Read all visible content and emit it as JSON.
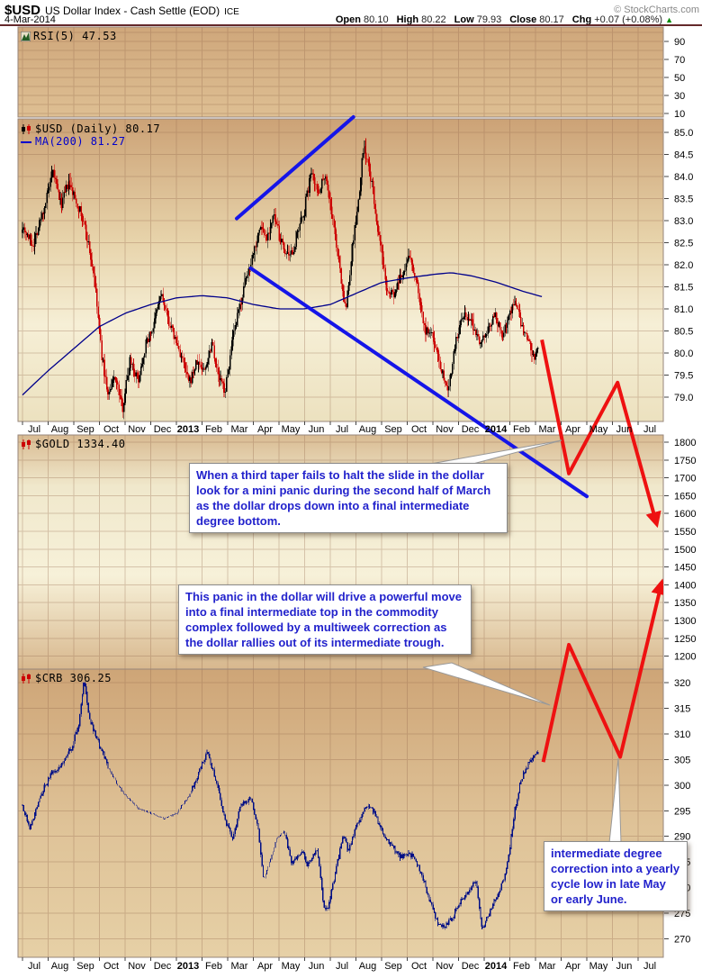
{
  "header": {
    "symbol": "$USD",
    "title": "US Dollar Index - Cash Settle (EOD)",
    "exchange": "ICE",
    "copyright": "© StockCharts.com",
    "date": "4-Mar-2014",
    "quote_parts": [
      {
        "label": "Open",
        "value": "80.10"
      },
      {
        "label": "High",
        "value": "80.22"
      },
      {
        "label": "Low",
        "value": "79.93"
      },
      {
        "label": "Close",
        "value": "80.17"
      },
      {
        "label": "Chg",
        "value": "+0.07 (+0.08%)"
      }
    ],
    "direction": "up",
    "up_triangle": "▲"
  },
  "panel_labels": {
    "rsi": "RSI(5) 47.53",
    "usd": "$USD (Daily) 80.17",
    "ma": "MA(200) 81.27",
    "gold": "$GOLD 1334.40",
    "crb": "$CRB 306.25"
  },
  "annotations": {
    "box1": "When a third taper fails to halt the slide in the dollar look for a mini panic during the second half of March as the dollar drops down into a final intermediate degree bottom.",
    "box2": "This panic in the dollar will drive a powerful move into a final intermediate top in the commodity complex followed by a multiweek correction as the dollar rallies out of its intermediate trough.",
    "box3": "intermediate degree correction into a yearly cycle low in late May or early June.",
    "tails": [
      [
        [
          473,
          516
        ],
        [
          624,
          489
        ],
        [
          503,
          521
        ]
      ],
      [
        [
          470,
          741
        ],
        [
          611,
          783
        ],
        [
          502,
          736
        ]
      ],
      [
        [
          677,
          936
        ],
        [
          687,
          842
        ],
        [
          690,
          936
        ]
      ]
    ]
  },
  "colors": {
    "candle_up": "#000000",
    "candle_down": "#cc0000",
    "crb_bars": "#000f86",
    "ma_line": "#00008b",
    "trendline_blue": "#1515e8",
    "projection_red": "#ee1111",
    "annotation_text": "#2222cc",
    "grid": "#93674c",
    "panel_border": "#97867b",
    "axis_text": "#000000"
  },
  "panel_gradients": {
    "rsi": [
      [
        0,
        "#cfa77b"
      ],
      [
        1,
        "#debf93"
      ]
    ],
    "usd": [
      [
        0,
        "#cca276"
      ],
      [
        0.4,
        "#e7d3aa"
      ],
      [
        0.68,
        "#f6efd6"
      ],
      [
        1,
        "#ece1bf"
      ]
    ],
    "gold": [
      [
        0,
        "#d9bb92"
      ],
      [
        0.22,
        "#f0e8cc"
      ],
      [
        0.6,
        "#f7f1d9"
      ],
      [
        1,
        "#d8b88e"
      ]
    ],
    "crb": [
      [
        0,
        "#cea577"
      ],
      [
        0.55,
        "#dfc398"
      ],
      [
        1,
        "#e6d0a6"
      ]
    ]
  },
  "chart_data": {
    "type": "candlestick-multi-panel",
    "x_range": [
      "Jul-2012",
      "Jul-2014"
    ],
    "data_end_month_index": 20.1,
    "month_labels": [
      "Jul",
      "Aug",
      "Sep",
      "Oct",
      "Nov",
      "Dec",
      "2013",
      "Feb",
      "Mar",
      "Apr",
      "May",
      "Jun",
      "Jul",
      "Aug",
      "Sep",
      "Oct",
      "Nov",
      "Dec",
      "2014",
      "Feb",
      "Mar",
      "Apr",
      "May",
      "Jun",
      "Jul"
    ],
    "panels": [
      {
        "id": "rsi",
        "title": "RSI(5) 47.53",
        "last_value": 47.53,
        "yticks": [
          90,
          70,
          50,
          30,
          10
        ],
        "grid_values": [
          100,
          90,
          80,
          70,
          60,
          50,
          40,
          30,
          20,
          10
        ],
        "series": []
      },
      {
        "id": "usd",
        "title": "$USD (Daily) 80.17",
        "last_value": 80.17,
        "yticks": [
          "85.0",
          "84.5",
          "84.0",
          "83.5",
          "83.0",
          "82.5",
          "82.0",
          "81.5",
          "81.0",
          "80.5",
          "80.0",
          "79.5",
          "79.0"
        ],
        "close_anchors": [
          [
            0,
            82.9
          ],
          [
            0.4,
            82.45
          ],
          [
            0.8,
            83.2
          ],
          [
            1.2,
            84.1
          ],
          [
            1.5,
            83.35
          ],
          [
            1.8,
            83.85
          ],
          [
            2.2,
            83.3
          ],
          [
            2.5,
            82.7
          ],
          [
            2.8,
            81.7
          ],
          [
            3.1,
            79.9
          ],
          [
            3.35,
            79.0
          ],
          [
            3.6,
            79.5
          ],
          [
            3.9,
            78.75
          ],
          [
            4.2,
            79.9
          ],
          [
            4.5,
            79.35
          ],
          [
            4.8,
            80.2
          ],
          [
            5.1,
            80.6
          ],
          [
            5.4,
            81.35
          ],
          [
            5.6,
            80.9
          ],
          [
            5.9,
            80.4
          ],
          [
            6.2,
            79.9
          ],
          [
            6.5,
            79.3
          ],
          [
            6.8,
            79.8
          ],
          [
            7.1,
            79.6
          ],
          [
            7.4,
            80.3
          ],
          [
            7.6,
            79.5
          ],
          [
            7.9,
            79.15
          ],
          [
            8.2,
            80.3
          ],
          [
            8.6,
            81.4
          ],
          [
            9,
            82.3
          ],
          [
            9.3,
            82.9
          ],
          [
            9.5,
            82.6
          ],
          [
            9.8,
            83.1
          ],
          [
            10.1,
            82.5
          ],
          [
            10.4,
            82.1
          ],
          [
            10.7,
            82.6
          ],
          [
            11,
            83.3
          ],
          [
            11.3,
            84.2
          ],
          [
            11.5,
            83.6
          ],
          [
            11.8,
            84.1
          ],
          [
            12.1,
            83
          ],
          [
            12.4,
            81.8
          ],
          [
            12.6,
            80.9
          ],
          [
            12.9,
            82.6
          ],
          [
            13.1,
            83.4
          ],
          [
            13.3,
            84.7
          ],
          [
            13.6,
            83.9
          ],
          [
            13.9,
            82.6
          ],
          [
            14.2,
            81.5
          ],
          [
            14.5,
            81.3
          ],
          [
            14.8,
            81.8
          ],
          [
            15.1,
            82.2
          ],
          [
            15.4,
            81.5
          ],
          [
            15.7,
            80.5
          ],
          [
            16,
            80.4
          ],
          [
            16.3,
            79.7
          ],
          [
            16.6,
            79.2
          ],
          [
            16.9,
            80.3
          ],
          [
            17.2,
            80.85
          ],
          [
            17.5,
            80.7
          ],
          [
            17.8,
            80.3
          ],
          [
            18.1,
            80.45
          ],
          [
            18.4,
            80.9
          ],
          [
            18.7,
            80.4
          ],
          [
            19,
            80.9
          ],
          [
            19.2,
            81.2
          ],
          [
            19.5,
            80.5
          ],
          [
            19.8,
            80.15
          ],
          [
            19.95,
            79.8
          ],
          [
            20.05,
            80.0
          ],
          [
            20.1,
            80.17
          ]
        ],
        "ma200_anchors": [
          [
            0,
            79.05
          ],
          [
            1,
            79.6
          ],
          [
            2,
            80.1
          ],
          [
            3,
            80.6
          ],
          [
            4,
            80.9
          ],
          [
            5,
            81.1
          ],
          [
            6,
            81.25
          ],
          [
            7,
            81.3
          ],
          [
            8,
            81.25
          ],
          [
            9,
            81.1
          ],
          [
            10,
            81
          ],
          [
            11,
            81
          ],
          [
            12,
            81.1
          ],
          [
            13,
            81.35
          ],
          [
            14,
            81.6
          ],
          [
            15,
            81.7
          ],
          [
            16,
            81.78
          ],
          [
            16.7,
            81.82
          ],
          [
            17.5,
            81.75
          ],
          [
            18.5,
            81.6
          ],
          [
            19.5,
            81.4
          ],
          [
            20.3,
            81.27
          ]
        ]
      },
      {
        "id": "gold",
        "title": "$GOLD 1334.40",
        "last_value": 1334.4,
        "yticks": [
          1800,
          1750,
          1700,
          1650,
          1600,
          1550,
          1500,
          1450,
          1400,
          1350,
          1300,
          1250,
          1200
        ],
        "series": []
      },
      {
        "id": "crb",
        "title": "$CRB 306.25",
        "last_value": 306.25,
        "yticks": [
          320,
          315,
          310,
          305,
          300,
          295,
          290,
          285,
          280,
          275,
          270
        ],
        "close_anchors": [
          [
            0,
            296
          ],
          [
            0.3,
            291.5
          ],
          [
            0.7,
            298
          ],
          [
            1.1,
            302
          ],
          [
            1.5,
            304
          ],
          [
            1.9,
            307
          ],
          [
            2.2,
            312
          ],
          [
            2.4,
            320.5
          ],
          [
            2.6,
            313
          ],
          [
            2.9,
            309
          ],
          [
            3.3,
            304
          ],
          [
            3.7,
            300
          ],
          [
            4.1,
            297.5
          ],
          [
            4.5,
            295.5
          ],
          [
            5,
            294.5
          ],
          [
            5.5,
            293.5
          ],
          [
            6,
            294.5
          ],
          [
            6.5,
            298
          ],
          [
            7,
            304
          ],
          [
            7.2,
            306.5
          ],
          [
            7.6,
            300
          ],
          [
            7.9,
            293
          ],
          [
            8.2,
            289.5
          ],
          [
            8.5,
            296
          ],
          [
            8.9,
            297.5
          ],
          [
            9.2,
            291
          ],
          [
            9.4,
            281.5
          ],
          [
            9.7,
            286
          ],
          [
            9.9,
            289.5
          ],
          [
            10.2,
            291
          ],
          [
            10.5,
            284.5
          ],
          [
            10.9,
            287
          ],
          [
            11.1,
            284.5
          ],
          [
            11.5,
            287.5
          ],
          [
            11.75,
            276
          ],
          [
            11.9,
            275.5
          ],
          [
            12.2,
            283
          ],
          [
            12.5,
            290.5
          ],
          [
            12.7,
            287
          ],
          [
            13,
            292
          ],
          [
            13.4,
            296
          ],
          [
            13.7,
            295
          ],
          [
            14.1,
            290
          ],
          [
            14.4,
            288
          ],
          [
            14.7,
            286
          ],
          [
            15,
            286.5
          ],
          [
            15.3,
            286
          ],
          [
            15.6,
            282
          ],
          [
            15.9,
            277
          ],
          [
            16.2,
            273
          ],
          [
            16.5,
            272.5
          ],
          [
            16.8,
            274.5
          ],
          [
            17.1,
            277.5
          ],
          [
            17.5,
            280
          ],
          [
            17.7,
            281.5
          ],
          [
            17.9,
            272
          ],
          [
            18.2,
            275
          ],
          [
            18.5,
            278.5
          ],
          [
            18.8,
            282
          ],
          [
            19,
            288
          ],
          [
            19.2,
            295
          ],
          [
            19.4,
            300.5
          ],
          [
            19.6,
            303
          ],
          [
            19.8,
            304.5
          ],
          [
            19.95,
            305.5
          ],
          [
            20.1,
            306.25
          ]
        ],
        "sparse_zones": [
          [
            3.35,
            6.6
          ],
          [
            9.35,
            10.25
          ]
        ]
      }
    ],
    "overlays": {
      "trendlines": [
        {
          "name": "rising-support",
          "points": [
            {
              "m": 8.35,
              "panel": "usd",
              "v": 83.05
            },
            {
              "m": 12.9,
              "panel": "usd",
              "v": 85.35
            }
          ]
        },
        {
          "name": "declining-resistance",
          "points": [
            {
              "m": 8.9,
              "panel": "usd",
              "v": 81.92
            },
            {
              "m": 22.0,
              "panel": "gold",
              "v": 1648
            }
          ]
        }
      ],
      "projections": [
        {
          "name": "dollar-panic-path",
          "arrow": "end",
          "points": [
            {
              "m": 20.25,
              "panel": "usd",
              "v": 80.3
            },
            {
              "m": 21.3,
              "panel": "gold",
              "v": 1712
            },
            {
              "m": 23.2,
              "panel": "usd",
              "v": 79.33
            },
            {
              "m": 24.7,
              "panel": "gold",
              "v": 1577
            }
          ]
        },
        {
          "name": "commodity-rally-path",
          "arrow": "end",
          "points": [
            {
              "m": 20.3,
              "panel": "crb",
              "v": 304.5
            },
            {
              "m": 21.3,
              "panel": "gold",
              "v": 1232
            },
            {
              "m": 23.3,
              "panel": "crb",
              "v": 305.5
            },
            {
              "m": 24.9,
              "panel": "gold",
              "v": 1400
            }
          ]
        }
      ]
    }
  }
}
